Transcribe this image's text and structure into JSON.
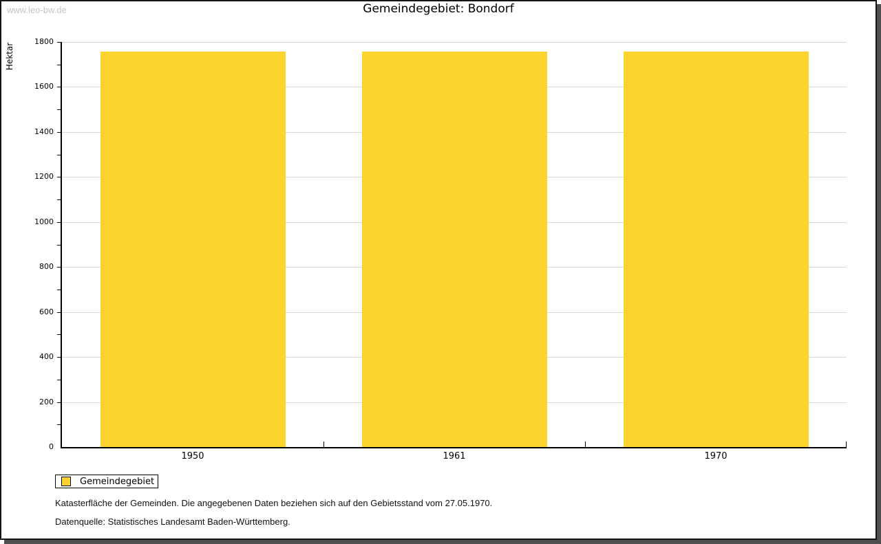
{
  "watermark": "www.leo-bw.de",
  "title": "Gemeindegebiet: Bondorf",
  "chart_data": {
    "type": "bar",
    "title": "Gemeindegebiet: Bondorf",
    "categories": [
      "1950",
      "1961",
      "1970"
    ],
    "series": [
      {
        "name": "Gemeindegebiet",
        "values": [
          1758,
          1758,
          1758
        ]
      }
    ],
    "xlabel": "",
    "ylabel": "Hektar",
    "ylim": [
      0,
      1800
    ],
    "ytick_step": 200,
    "yminor_step": 100,
    "grid": true,
    "legend_position": "below-left",
    "bar_color": "#fcd42d"
  },
  "legend": {
    "items": [
      {
        "label": "Gemeindegebiet",
        "color": "#fcd42d"
      }
    ]
  },
  "footer": {
    "note": "Katasterfläche der Gemeinden. Die angegebenen Daten beziehen sich auf den Gebietsstand vom 27.05.1970.",
    "source": "Datenquelle: Statistisches Landesamt Baden-Württemberg."
  },
  "colors": {
    "bar": "#fcd42d",
    "grid": "#d8d8d8",
    "axis": "#000000",
    "watermark": "#c4c4c4",
    "shadow": "#4f4f4f"
  }
}
